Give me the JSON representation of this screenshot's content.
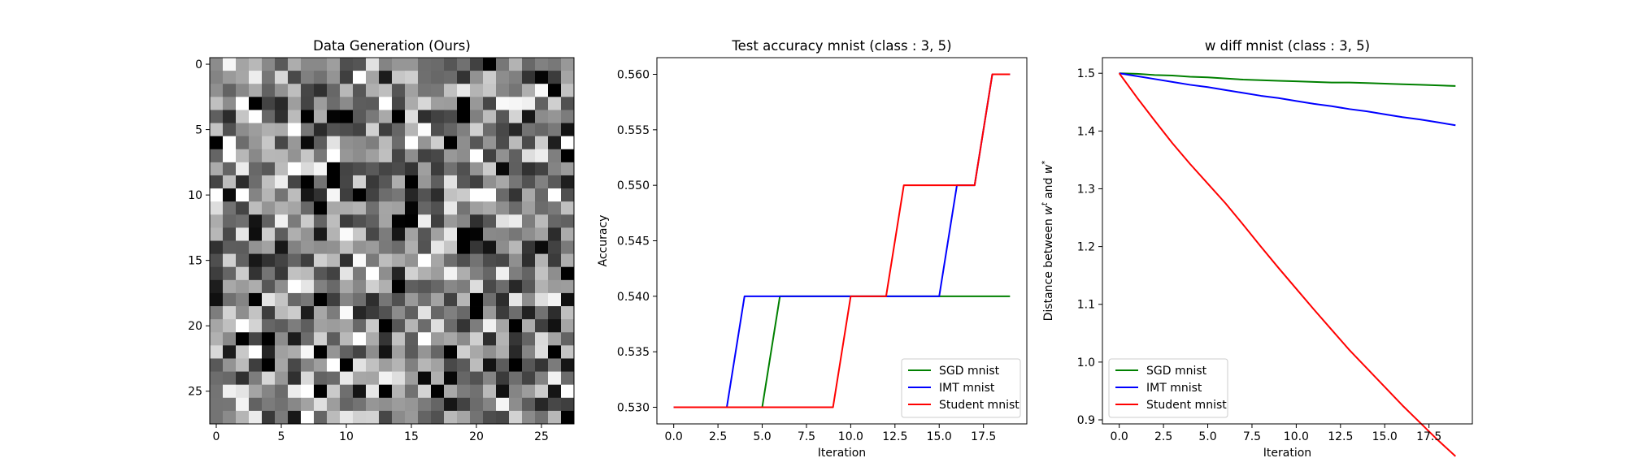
{
  "figure": {
    "background": "#ffffff"
  },
  "colors": {
    "sgd": "#008000",
    "imt": "#0000ff",
    "student": "#ff0000",
    "axis": "#000000",
    "legend_border": "#cccccc"
  },
  "chart_data": [
    {
      "type": "heatmap",
      "title": "Data Generation (Ours)",
      "xlabel": "",
      "ylabel": "",
      "colormap": "gray",
      "rows": 28,
      "cols": 28,
      "xlim": [
        -0.5,
        27.5
      ],
      "ylim": [
        27.5,
        -0.5
      ],
      "xticks": [
        0,
        5,
        10,
        15,
        20,
        25
      ],
      "yticks": [
        0,
        5,
        10,
        15,
        20,
        25
      ],
      "grid": false,
      "values_note": "28x28 grid of random gray intensities between 0 and 1"
    },
    {
      "type": "line",
      "title": "Test accuracy mnist (class : 3, 5)",
      "xlabel": "Iteration",
      "ylabel": "Accuracy",
      "xlim": [
        -0.95,
        19.95
      ],
      "ylim": [
        0.5285,
        0.5615
      ],
      "xticks": [
        "0.0",
        "2.5",
        "5.0",
        "7.5",
        "10.0",
        "12.5",
        "15.0",
        "17.5"
      ],
      "yticks": [
        "0.530",
        "0.535",
        "0.540",
        "0.545",
        "0.550",
        "0.555",
        "0.560"
      ],
      "x": [
        0,
        1,
        2,
        3,
        4,
        5,
        6,
        7,
        8,
        9,
        10,
        11,
        12,
        13,
        14,
        15,
        16,
        17,
        18,
        19
      ],
      "series": [
        {
          "name": "SGD mnist",
          "color": "#008000",
          "values": [
            0.53,
            0.53,
            0.53,
            0.53,
            0.53,
            0.53,
            0.54,
            0.54,
            0.54,
            0.54,
            0.54,
            0.54,
            0.54,
            0.54,
            0.54,
            0.54,
            0.54,
            0.54,
            0.54,
            0.54
          ]
        },
        {
          "name": "IMT mnist",
          "color": "#0000ff",
          "values": [
            0.53,
            0.53,
            0.53,
            0.53,
            0.54,
            0.54,
            0.54,
            0.54,
            0.54,
            0.54,
            0.54,
            0.54,
            0.54,
            0.54,
            0.54,
            0.54,
            0.55,
            0.55,
            0.56,
            0.56
          ]
        },
        {
          "name": "Student mnist",
          "color": "#ff0000",
          "values": [
            0.53,
            0.53,
            0.53,
            0.53,
            0.53,
            0.53,
            0.53,
            0.53,
            0.53,
            0.53,
            0.54,
            0.54,
            0.54,
            0.55,
            0.55,
            0.55,
            0.55,
            0.55,
            0.56,
            0.56
          ]
        }
      ],
      "legend": "lower right",
      "grid": false
    },
    {
      "type": "line",
      "title": "w diff mnist (class : 3, 5)",
      "xlabel": "Iteration",
      "ylabel": "Distance between w^t and w^*",
      "xlim": [
        -0.95,
        19.95
      ],
      "ylim": [
        0.893,
        1.527
      ],
      "xticks": [
        "0.0",
        "2.5",
        "5.0",
        "7.5",
        "10.0",
        "12.5",
        "15.0",
        "17.5"
      ],
      "yticks": [
        "0.9",
        "1.0",
        "1.1",
        "1.2",
        "1.3",
        "1.4",
        "1.5"
      ],
      "x": [
        0,
        1,
        2,
        3,
        4,
        5,
        6,
        7,
        8,
        9,
        10,
        11,
        12,
        13,
        14,
        15,
        16,
        17,
        18,
        19
      ],
      "series": [
        {
          "name": "SGD mnist",
          "color": "#008000",
          "values": [
            1.5,
            1.499,
            1.497,
            1.496,
            1.494,
            1.493,
            1.491,
            1.489,
            1.488,
            1.487,
            1.486,
            1.485,
            1.484,
            1.484,
            1.483,
            1.482,
            1.481,
            1.48,
            1.479,
            1.478
          ]
        },
        {
          "name": "IMT mnist",
          "color": "#0000ff",
          "values": [
            1.5,
            1.495,
            1.49,
            1.485,
            1.48,
            1.476,
            1.471,
            1.466,
            1.461,
            1.457,
            1.452,
            1.447,
            1.443,
            1.438,
            1.434,
            1.429,
            1.424,
            1.42,
            1.415,
            1.41
          ]
        },
        {
          "name": "Student mnist",
          "color": "#ff0000",
          "values": [
            1.5,
            1.458,
            1.418,
            1.379,
            1.343,
            1.309,
            1.275,
            1.238,
            1.2,
            1.163,
            1.127,
            1.091,
            1.056,
            1.021,
            0.989,
            0.957,
            0.925,
            0.895,
            0.865,
            0.837
          ]
        }
      ],
      "legend": "lower left",
      "grid": false
    }
  ]
}
